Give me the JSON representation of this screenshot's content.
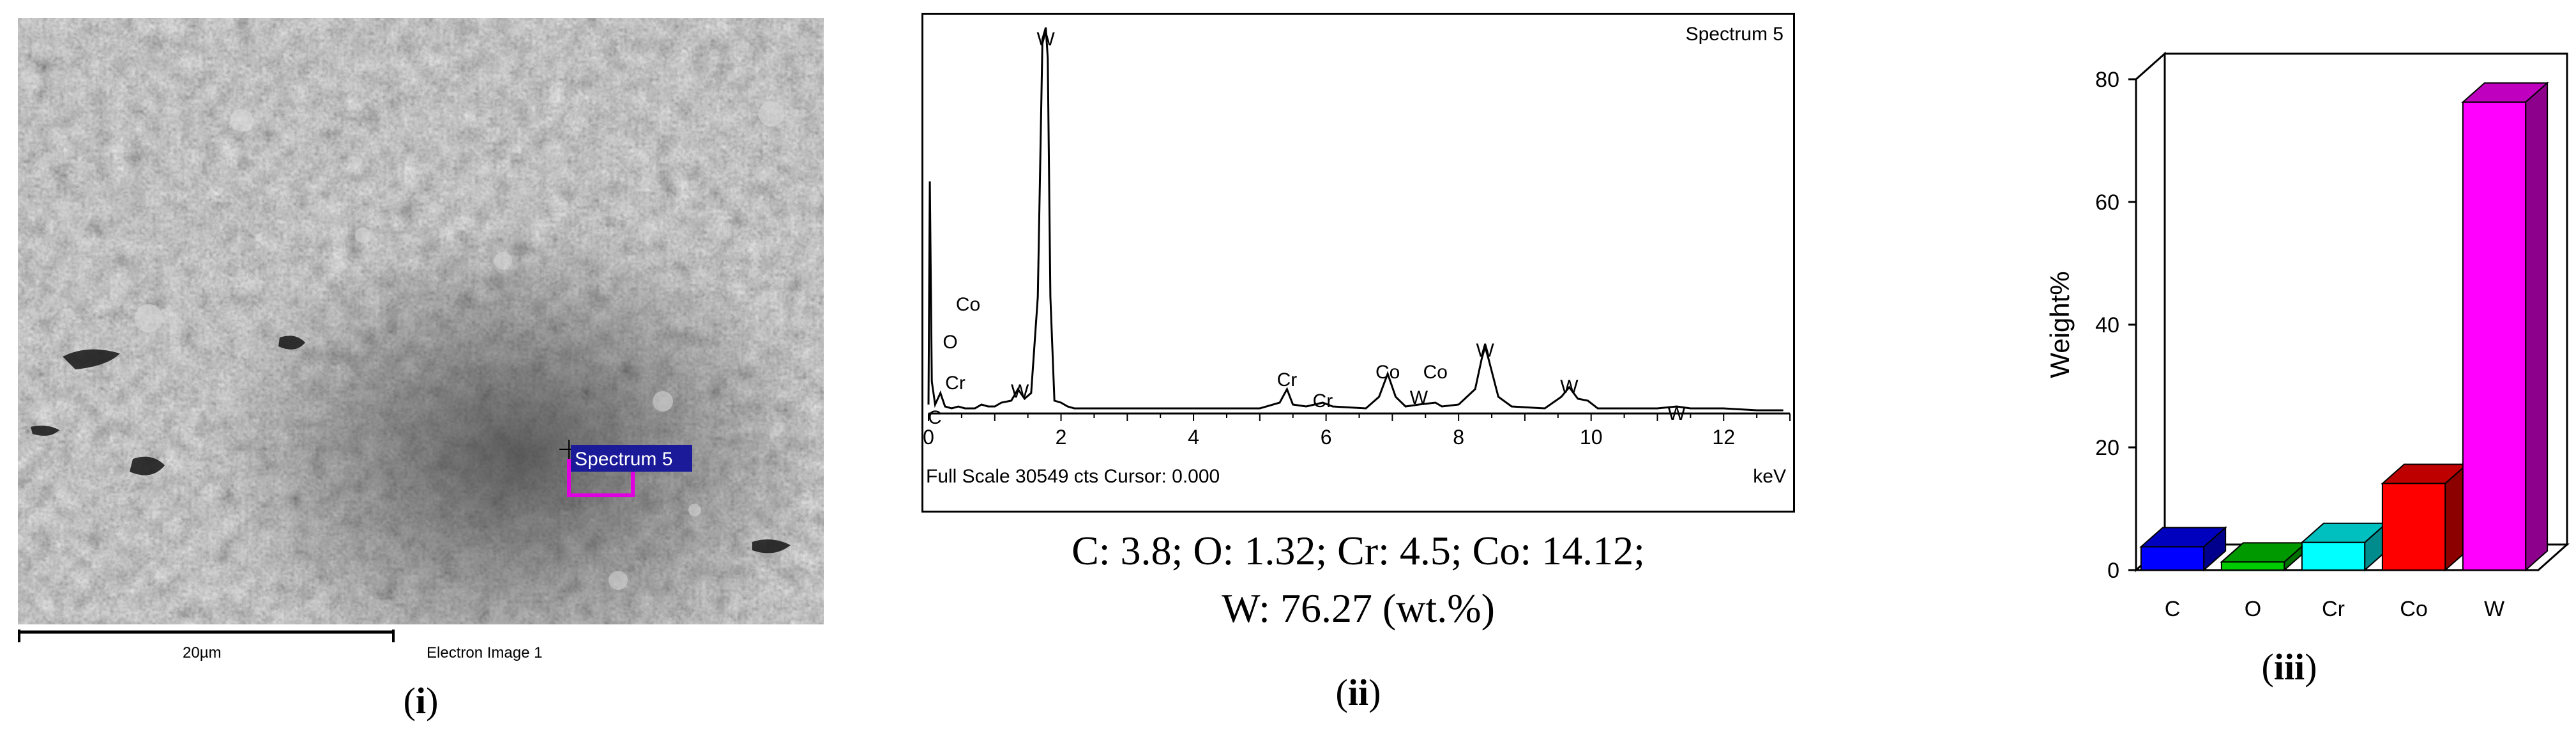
{
  "panel_i": {
    "caption_open": "(",
    "caption_letter": "i",
    "caption_close": ")",
    "overlay_label": "Spectrum 5",
    "scale_label": "20µm",
    "image_label": "Electron Image 1"
  },
  "panel_ii": {
    "caption_open": "(",
    "caption_letter": "ii",
    "caption_close": ")",
    "composition_line1": "C: 3.8; O: 1.32; Cr: 4.5; Co: 14.12;",
    "composition_line2": "W: 76.27 (wt.%)"
  },
  "panel_iii": {
    "caption_open": "(",
    "caption_letter": "iii",
    "caption_close": ")"
  },
  "chart_data": [
    {
      "type": "line",
      "title": "Spectrum 5",
      "xlabel": "keV",
      "footer": "Full Scale 30549 cts Cursor: 0.000",
      "xlim": [
        0,
        13
      ],
      "x_ticks": [
        0,
        2,
        4,
        6,
        8,
        10,
        12
      ],
      "series": [
        {
          "x": [
            0.0,
            0.02,
            0.05,
            0.1,
            0.18,
            0.25,
            0.35,
            0.45,
            0.55,
            0.7,
            0.8,
            0.9,
            1.0,
            1.1,
            1.25,
            1.35,
            1.45,
            1.55,
            1.65,
            1.72,
            1.77,
            1.8,
            1.84,
            1.9,
            2.0,
            2.1,
            2.2,
            2.5,
            3.0,
            4.0,
            5.0,
            5.3,
            5.41,
            5.5,
            5.7,
            5.95,
            6.1,
            6.6,
            6.8,
            6.93,
            7.05,
            7.2,
            7.4,
            7.65,
            7.75,
            8.0,
            8.25,
            8.35,
            8.4,
            8.45,
            8.6,
            8.8,
            9.3,
            9.55,
            9.67,
            9.8,
            9.95,
            10.1,
            10.5,
            11.0,
            11.29,
            11.5,
            12.0,
            12.5,
            12.9
          ],
          "y": [
            0.02,
            0.6,
            0.08,
            0.02,
            0.05,
            0.015,
            0.01,
            0.015,
            0.01,
            0.01,
            0.02,
            0.015,
            0.015,
            0.025,
            0.03,
            0.06,
            0.035,
            0.05,
            0.3,
            0.97,
            1.0,
            0.92,
            0.3,
            0.03,
            0.025,
            0.015,
            0.01,
            0.01,
            0.01,
            0.01,
            0.01,
            0.025,
            0.06,
            0.02,
            0.015,
            0.025,
            0.015,
            0.01,
            0.04,
            0.1,
            0.04,
            0.015,
            0.02,
            0.025,
            0.015,
            0.02,
            0.06,
            0.14,
            0.17,
            0.14,
            0.04,
            0.015,
            0.01,
            0.04,
            0.065,
            0.035,
            0.03,
            0.01,
            0.01,
            0.01,
            0.015,
            0.01,
            0.01,
            0.005,
            0.005
          ]
        }
      ],
      "annotations": [
        {
          "text": "W",
          "x": 1.77
        },
        {
          "text": "Co",
          "x": 0.78
        },
        {
          "text": "O",
          "x": 0.52
        },
        {
          "text": "Cr",
          "x": 0.57
        },
        {
          "text": "C",
          "x": 0.28
        },
        {
          "text": "W",
          "x": 1.38
        },
        {
          "text": "Cr",
          "x": 5.41
        },
        {
          "text": "Cr",
          "x": 5.95
        },
        {
          "text": "Co",
          "x": 6.93
        },
        {
          "text": "Co",
          "x": 7.65
        },
        {
          "text": "W",
          "x": 7.4
        },
        {
          "text": "W",
          "x": 8.4
        },
        {
          "text": "W",
          "x": 9.67
        },
        {
          "text": "W",
          "x": 11.29
        }
      ]
    },
    {
      "type": "bar",
      "ylabel": "Weight%",
      "ylim": [
        0,
        80
      ],
      "y_ticks": [
        0,
        20,
        40,
        60,
        80
      ],
      "categories": [
        "C",
        "O",
        "Cr",
        "Co",
        "W"
      ],
      "values": [
        3.8,
        1.32,
        4.5,
        14.12,
        76.27
      ],
      "colors": [
        "#0000ff",
        "#00cc00",
        "#00ffff",
        "#ff0000",
        "#ff00ff"
      ]
    }
  ]
}
